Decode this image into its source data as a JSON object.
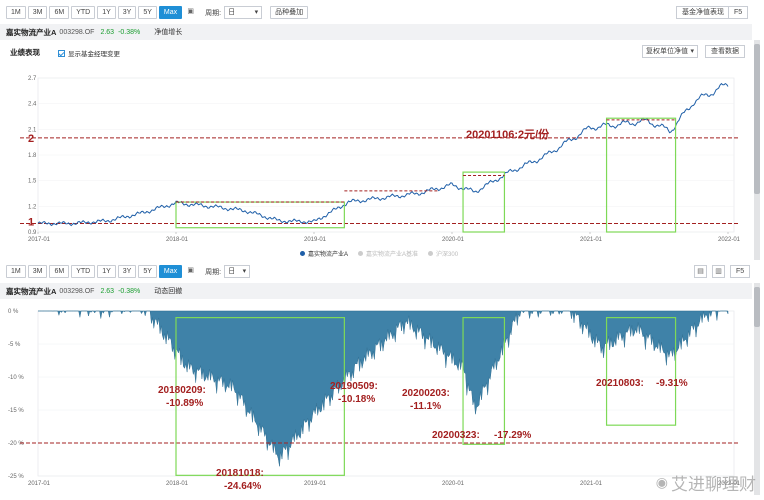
{
  "top_toolbar": {
    "ranges": [
      "1M",
      "3M",
      "6M",
      "YTD",
      "1Y",
      "3Y",
      "5Y",
      "Max"
    ],
    "active_range": "Max",
    "period_label": "周期:",
    "period_value": "日",
    "overlay_button": "品种叠加",
    "right_button": "基金净值表现",
    "f5": "F5"
  },
  "fund": {
    "name": "嘉实物流产业A",
    "code": "003298.OF",
    "nav": "2.63",
    "change": "-0.38%"
  },
  "top_panel": {
    "tag": "净值增长",
    "section_title": "业绩表现",
    "checkbox_label": "显示基金经理变更",
    "unit_select": "复权单位净值",
    "view_data_button": "查看数据",
    "legend": [
      "嘉实物流产业A",
      "嘉实物流产业A基准",
      "沪深300"
    ]
  },
  "bottom_toolbar": {
    "ranges": [
      "1M",
      "3M",
      "6M",
      "YTD",
      "1Y",
      "3Y",
      "5Y",
      "Max"
    ],
    "active_range": "Max",
    "period_label": "周期:",
    "period_value": "日",
    "f5": "F5"
  },
  "bottom_panel": {
    "tag": "动态回撤"
  },
  "watermark": "艾进聊理财",
  "chart_data": [
    {
      "type": "line",
      "title": "",
      "x_ticks": [
        "2017-01",
        "2018-01",
        "2019-01",
        "2020-01",
        "2021-01",
        "2022-01"
      ],
      "y_ticks": [
        "0.9",
        "1.2",
        "1.5",
        "1.8",
        "2.1",
        "2.4",
        "2.7"
      ],
      "ylim": [
        0.9,
        2.7
      ],
      "series": [
        {
          "name": "嘉实物流产业A",
          "color": "#1f5fa8",
          "x": [
            "2017-01",
            "2017-04",
            "2017-07",
            "2017-10",
            "2018-01",
            "2018-04",
            "2018-07",
            "2018-10",
            "2019-01",
            "2019-04",
            "2019-07",
            "2019-10",
            "2020-01",
            "2020-03",
            "2020-06",
            "2020-09",
            "2020-11",
            "2021-01",
            "2021-03",
            "2021-06",
            "2021-08",
            "2021-10",
            "2022-01"
          ],
          "values": [
            1.0,
            1.0,
            1.03,
            1.12,
            1.24,
            1.2,
            1.15,
            1.03,
            1.02,
            1.25,
            1.3,
            1.35,
            1.45,
            1.37,
            1.6,
            1.78,
            1.95,
            2.12,
            2.15,
            2.2,
            2.08,
            2.42,
            2.63
          ]
        }
      ],
      "annotations": [
        {
          "text": "1",
          "y": 1.0
        },
        {
          "text": "2",
          "y": 2.0
        },
        {
          "text": "20201106:2元/份"
        }
      ],
      "reference_lines": [
        1.0,
        2.0
      ]
    },
    {
      "type": "area",
      "title": "",
      "x_ticks": [
        "2017-01",
        "2018-01",
        "2019-01",
        "2020-01",
        "2021-01",
        "2022-01"
      ],
      "y_ticks": [
        "0 %",
        "-5 %",
        "-10 %",
        "-15 %",
        "-20 %",
        "-25 %"
      ],
      "ylim": [
        -25,
        0
      ],
      "series": [
        {
          "name": "动态回撤",
          "color": "#3f82a8",
          "x": [
            "2017-01",
            "2017-06",
            "2017-10",
            "2018-02",
            "2018-06",
            "2018-10",
            "2019-01",
            "2019-05",
            "2019-09",
            "2020-02",
            "2020-03",
            "2020-07",
            "2020-11",
            "2021-02",
            "2021-05",
            "2021-08",
            "2021-11",
            "2022-01"
          ],
          "values": [
            0,
            -2,
            -1,
            -10.89,
            -14,
            -24.64,
            -18,
            -10.18,
            -4,
            -11.1,
            -17.29,
            -2,
            -1.5,
            -8,
            -5,
            -9.31,
            -3,
            -1
          ]
        }
      ],
      "annotations": [
        {
          "text": "20180209:",
          "value": "-10.89%"
        },
        {
          "text": "20181018:",
          "value": "-24.64%"
        },
        {
          "text": "20190509:",
          "value": "-10.18%"
        },
        {
          "text": "20200203:",
          "value": "-11.1%"
        },
        {
          "text": "20200323:",
          "value": "-17.29%"
        },
        {
          "text": "20210803:",
          "value": "-9.31%"
        }
      ],
      "reference_lines": [
        -20
      ]
    }
  ]
}
